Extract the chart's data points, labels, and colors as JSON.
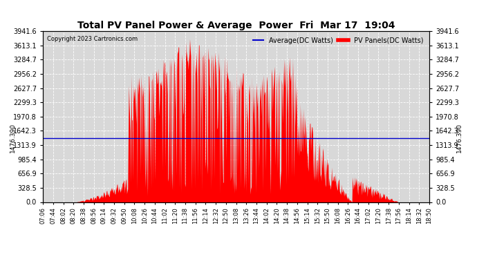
{
  "title": "Total PV Panel Power & Average  Power  Fri  Mar 17  19:04",
  "copyright": "Copyright 2023 Cartronics.com",
  "legend_avg": "Average(DC Watts)",
  "legend_pv": "PV Panels(DC Watts)",
  "ymin": 0.0,
  "ymax": 3941.6,
  "yticks": [
    0.0,
    328.5,
    656.9,
    985.4,
    1313.9,
    1642.3,
    1970.8,
    2299.3,
    2627.7,
    2956.2,
    3284.7,
    3613.1,
    3941.6
  ],
  "avg_line_y": 1476.39,
  "avg_line_label": "1476.390",
  "bg_color": "#ffffff",
  "plot_bg_color": "#d8d8d8",
  "pv_color": "#ff0000",
  "avg_color": "#0000cc",
  "grid_color": "#ffffff",
  "title_color": "#000000",
  "x_tick_labels": [
    "07:06",
    "07:44",
    "08:02",
    "08:20",
    "08:38",
    "08:56",
    "09:14",
    "09:32",
    "09:50",
    "10:08",
    "10:26",
    "10:44",
    "11:02",
    "11:20",
    "11:38",
    "11:56",
    "12:14",
    "12:32",
    "12:50",
    "13:08",
    "13:26",
    "13:44",
    "14:02",
    "14:20",
    "14:38",
    "14:56",
    "15:14",
    "15:32",
    "15:50",
    "16:08",
    "16:26",
    "16:44",
    "17:02",
    "17:20",
    "17:38",
    "17:56",
    "18:14",
    "18:32",
    "18:50"
  ],
  "num_points": 780,
  "figwidth": 6.9,
  "figheight": 3.75,
  "dpi": 100
}
